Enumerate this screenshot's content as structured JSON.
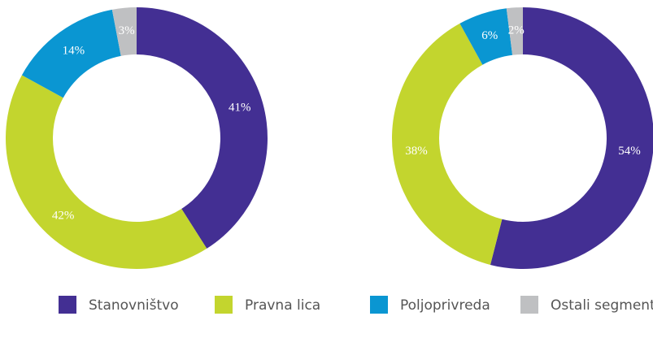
{
  "chart_data": [
    {
      "type": "pie",
      "donut": true,
      "categories": [
        "Stanovništvo",
        "Pravna lica",
        "Poljoprivreda",
        "Ostali segmenti"
      ],
      "values": [
        41,
        42,
        14,
        3
      ],
      "value_labels": [
        "41%",
        "42%",
        "14%",
        "3%"
      ],
      "colors": [
        "#432f93",
        "#c3d52e",
        "#0a96d2",
        "#bfc0c2"
      ],
      "legend": "bottom"
    },
    {
      "type": "pie",
      "donut": true,
      "categories": [
        "Stanovništvo",
        "Pravna lica",
        "Poljoprivreda",
        "Ostali segmenti"
      ],
      "values": [
        54,
        38,
        6,
        2
      ],
      "value_labels": [
        "54%",
        "38%",
        "6%",
        "2%"
      ],
      "colors": [
        "#432f93",
        "#c3d52e",
        "#0a96d2",
        "#bfc0c2"
      ]
    }
  ]
}
